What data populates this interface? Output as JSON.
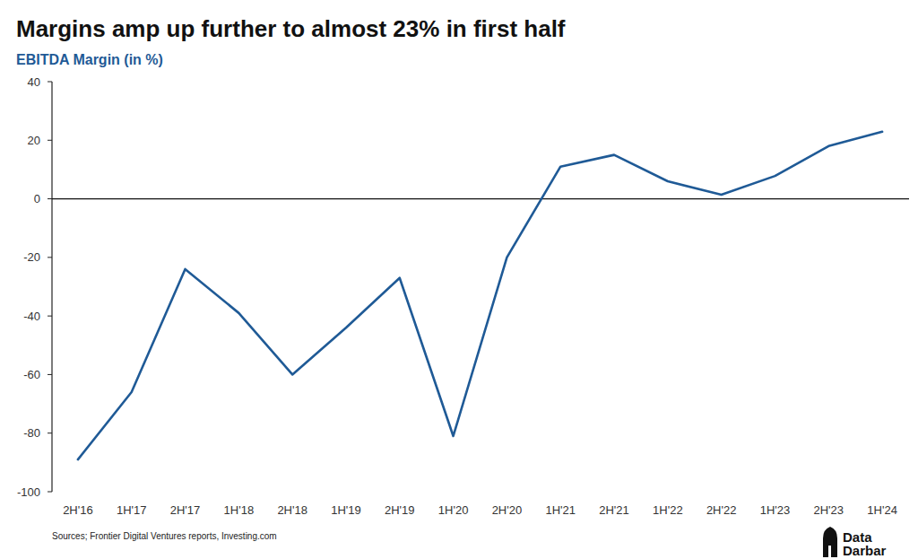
{
  "chart_data": {
    "type": "line",
    "title": "Margins amp up further to almost 23% in first half",
    "subtitle": "EBITDA Margin (in %)",
    "source": "Sources; Frontier Digital Ventures reports, Investing.com",
    "brand": "Data Darbar",
    "categories": [
      "2H'16",
      "1H'17",
      "2H'17",
      "1H'18",
      "2H'18",
      "1H'19",
      "2H'19",
      "1H'20",
      "2H'20",
      "1H'21",
      "2H'21",
      "1H'22",
      "2H'22",
      "1H'23",
      "2H'23",
      "1H'24"
    ],
    "values": [
      -89,
      -66,
      -24,
      -39,
      -60,
      -44,
      -27,
      -81,
      -20,
      11,
      15,
      6,
      1.4,
      7.8,
      18,
      22.9
    ],
    "color": "#1f5a96",
    "ylim": [
      -100,
      40
    ],
    "yticks": [
      -100,
      -80,
      -60,
      -40,
      -20,
      0,
      20,
      40
    ],
    "grid": false
  }
}
